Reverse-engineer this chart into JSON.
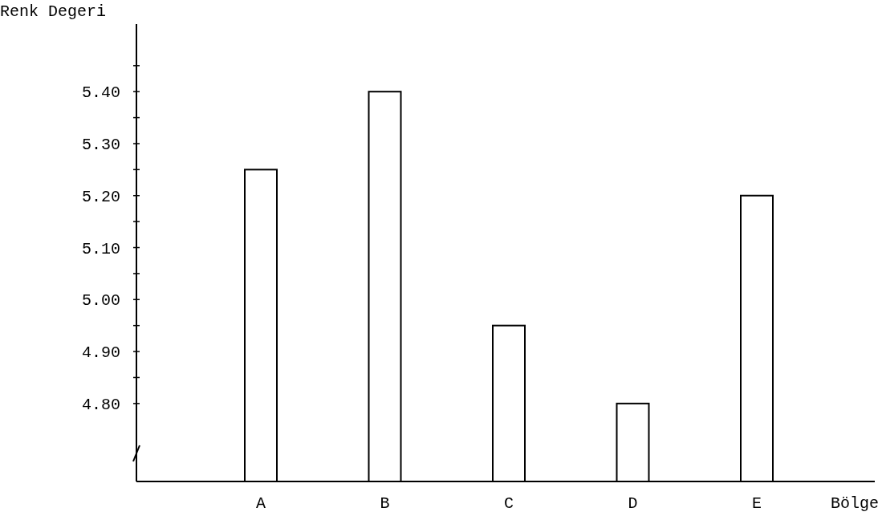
{
  "chart_data": {
    "type": "bar",
    "xlabel": "Bölge",
    "ylabel": "Renk Degeri",
    "categories": [
      "A",
      "B",
      "C",
      "D",
      "E"
    ],
    "values": [
      5.25,
      5.4,
      4.95,
      4.8,
      5.2
    ],
    "color": "#ffffff",
    "ylim": [
      4.65,
      5.53
    ],
    "yticks": [
      {
        "value": 4.8,
        "label": "4.80"
      },
      {
        "value": 4.85,
        "label": null
      },
      {
        "value": 4.9,
        "label": "4.90"
      },
      {
        "value": 4.95,
        "label": null
      },
      {
        "value": 5.0,
        "label": "5.00"
      },
      {
        "value": 5.05,
        "label": null
      },
      {
        "value": 5.1,
        "label": "5.10"
      },
      {
        "value": 5.15,
        "label": null
      },
      {
        "value": 5.2,
        "label": "5.20"
      },
      {
        "value": 5.25,
        "label": null
      },
      {
        "value": 5.3,
        "label": "5.30"
      },
      {
        "value": 5.35,
        "label": null
      },
      {
        "value": 5.4,
        "label": "5.40"
      },
      {
        "value": 5.45,
        "label": null
      }
    ],
    "grid": false
  }
}
